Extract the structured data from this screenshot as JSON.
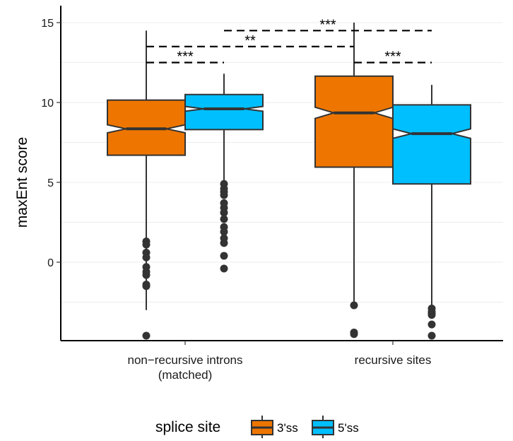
{
  "chart_data": {
    "type": "boxplot",
    "notched": true,
    "ylabel": "maxEnt score",
    "xlabel": "",
    "ylim": [
      -5,
      16
    ],
    "yticks": [
      0,
      5,
      10,
      15
    ],
    "grid": true,
    "categories": [
      {
        "lines": [
          "non−recursive introns",
          "(matched)"
        ]
      },
      {
        "lines": [
          "recursive sites"
        ]
      }
    ],
    "legend": {
      "title": "splice site",
      "placement": "bottom",
      "entries": [
        "3'ss",
        "5'ss"
      ]
    },
    "colors": {
      "3'ss": "#ee7600",
      "5'ss": "#00bfff",
      "outline": "#333333"
    },
    "series": [
      {
        "name": "3'ss",
        "boxes": [
          {
            "category": 0,
            "whisker_low": -3.0,
            "q1": 6.7,
            "median": 8.35,
            "q3": 10.15,
            "whisker_high": 14.5,
            "notch_low": 8.1,
            "notch_high": 8.6,
            "outliers": [
              1.3,
              1.1,
              0.6,
              0.3,
              -0.3,
              -0.6,
              -0.8,
              -1.4,
              -1.5,
              -4.6
            ]
          },
          {
            "category": 1,
            "whisker_low": -2.6,
            "q1": 5.95,
            "median": 9.35,
            "q3": 11.65,
            "whisker_high": 15.0,
            "notch_low": 9.0,
            "notch_high": 9.7,
            "outliers": [
              -2.7,
              -4.4,
              -4.5
            ]
          }
        ]
      },
      {
        "name": "5'ss",
        "boxes": [
          {
            "category": 0,
            "whisker_low": 5.0,
            "q1": 8.3,
            "median": 9.6,
            "q3": 10.5,
            "whisker_high": 11.8,
            "notch_low": 9.45,
            "notch_high": 9.75,
            "outliers": [
              4.9,
              4.6,
              4.4,
              4.2,
              3.7,
              3.4,
              3.1,
              2.7,
              2.2,
              1.9,
              1.5,
              1.2,
              0.4,
              -0.4
            ]
          },
          {
            "category": 1,
            "whisker_low": -2.7,
            "q1": 4.9,
            "median": 8.05,
            "q3": 9.85,
            "whisker_high": 11.1,
            "notch_low": 7.75,
            "notch_high": 8.35,
            "outliers": [
              -2.9,
              -3.1,
              -3.2,
              -3.3,
              -3.9,
              -4.6
            ]
          }
        ]
      }
    ],
    "significance": [
      {
        "label": "***",
        "from": {
          "category": 0,
          "series": 0
        },
        "to": {
          "category": 0,
          "series": 1
        },
        "y": 12.5
      },
      {
        "label": "**",
        "from": {
          "category": 0,
          "series": 0
        },
        "to": {
          "category": 1,
          "series": 0
        },
        "y": 13.5
      },
      {
        "label": "***",
        "from": {
          "category": 0,
          "series": 1
        },
        "to": {
          "category": 1,
          "series": 1
        },
        "y": 14.5
      },
      {
        "label": "***",
        "from": {
          "category": 1,
          "series": 0
        },
        "to": {
          "category": 1,
          "series": 1
        },
        "y": 12.5
      }
    ]
  }
}
